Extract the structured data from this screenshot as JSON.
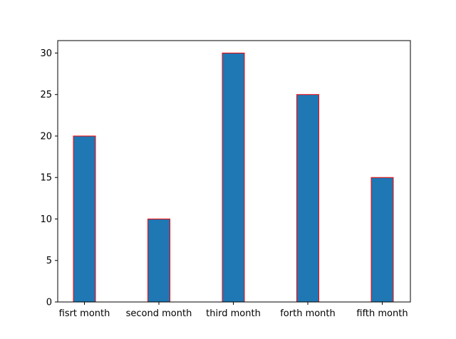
{
  "chart_data": {
    "type": "bar",
    "categories": [
      "fisrt month",
      "second month",
      "third month",
      "forth month",
      "fifth month"
    ],
    "values": [
      20,
      10,
      30,
      25,
      15
    ],
    "title": "",
    "xlabel": "",
    "ylabel": "",
    "ylim": [
      0,
      31.5
    ],
    "yticks": [
      "0",
      "5",
      "10",
      "15",
      "20",
      "25",
      "30"
    ],
    "grid": false,
    "bar_color": "#1f77b4",
    "bar_edge_color": "#ff0000"
  }
}
